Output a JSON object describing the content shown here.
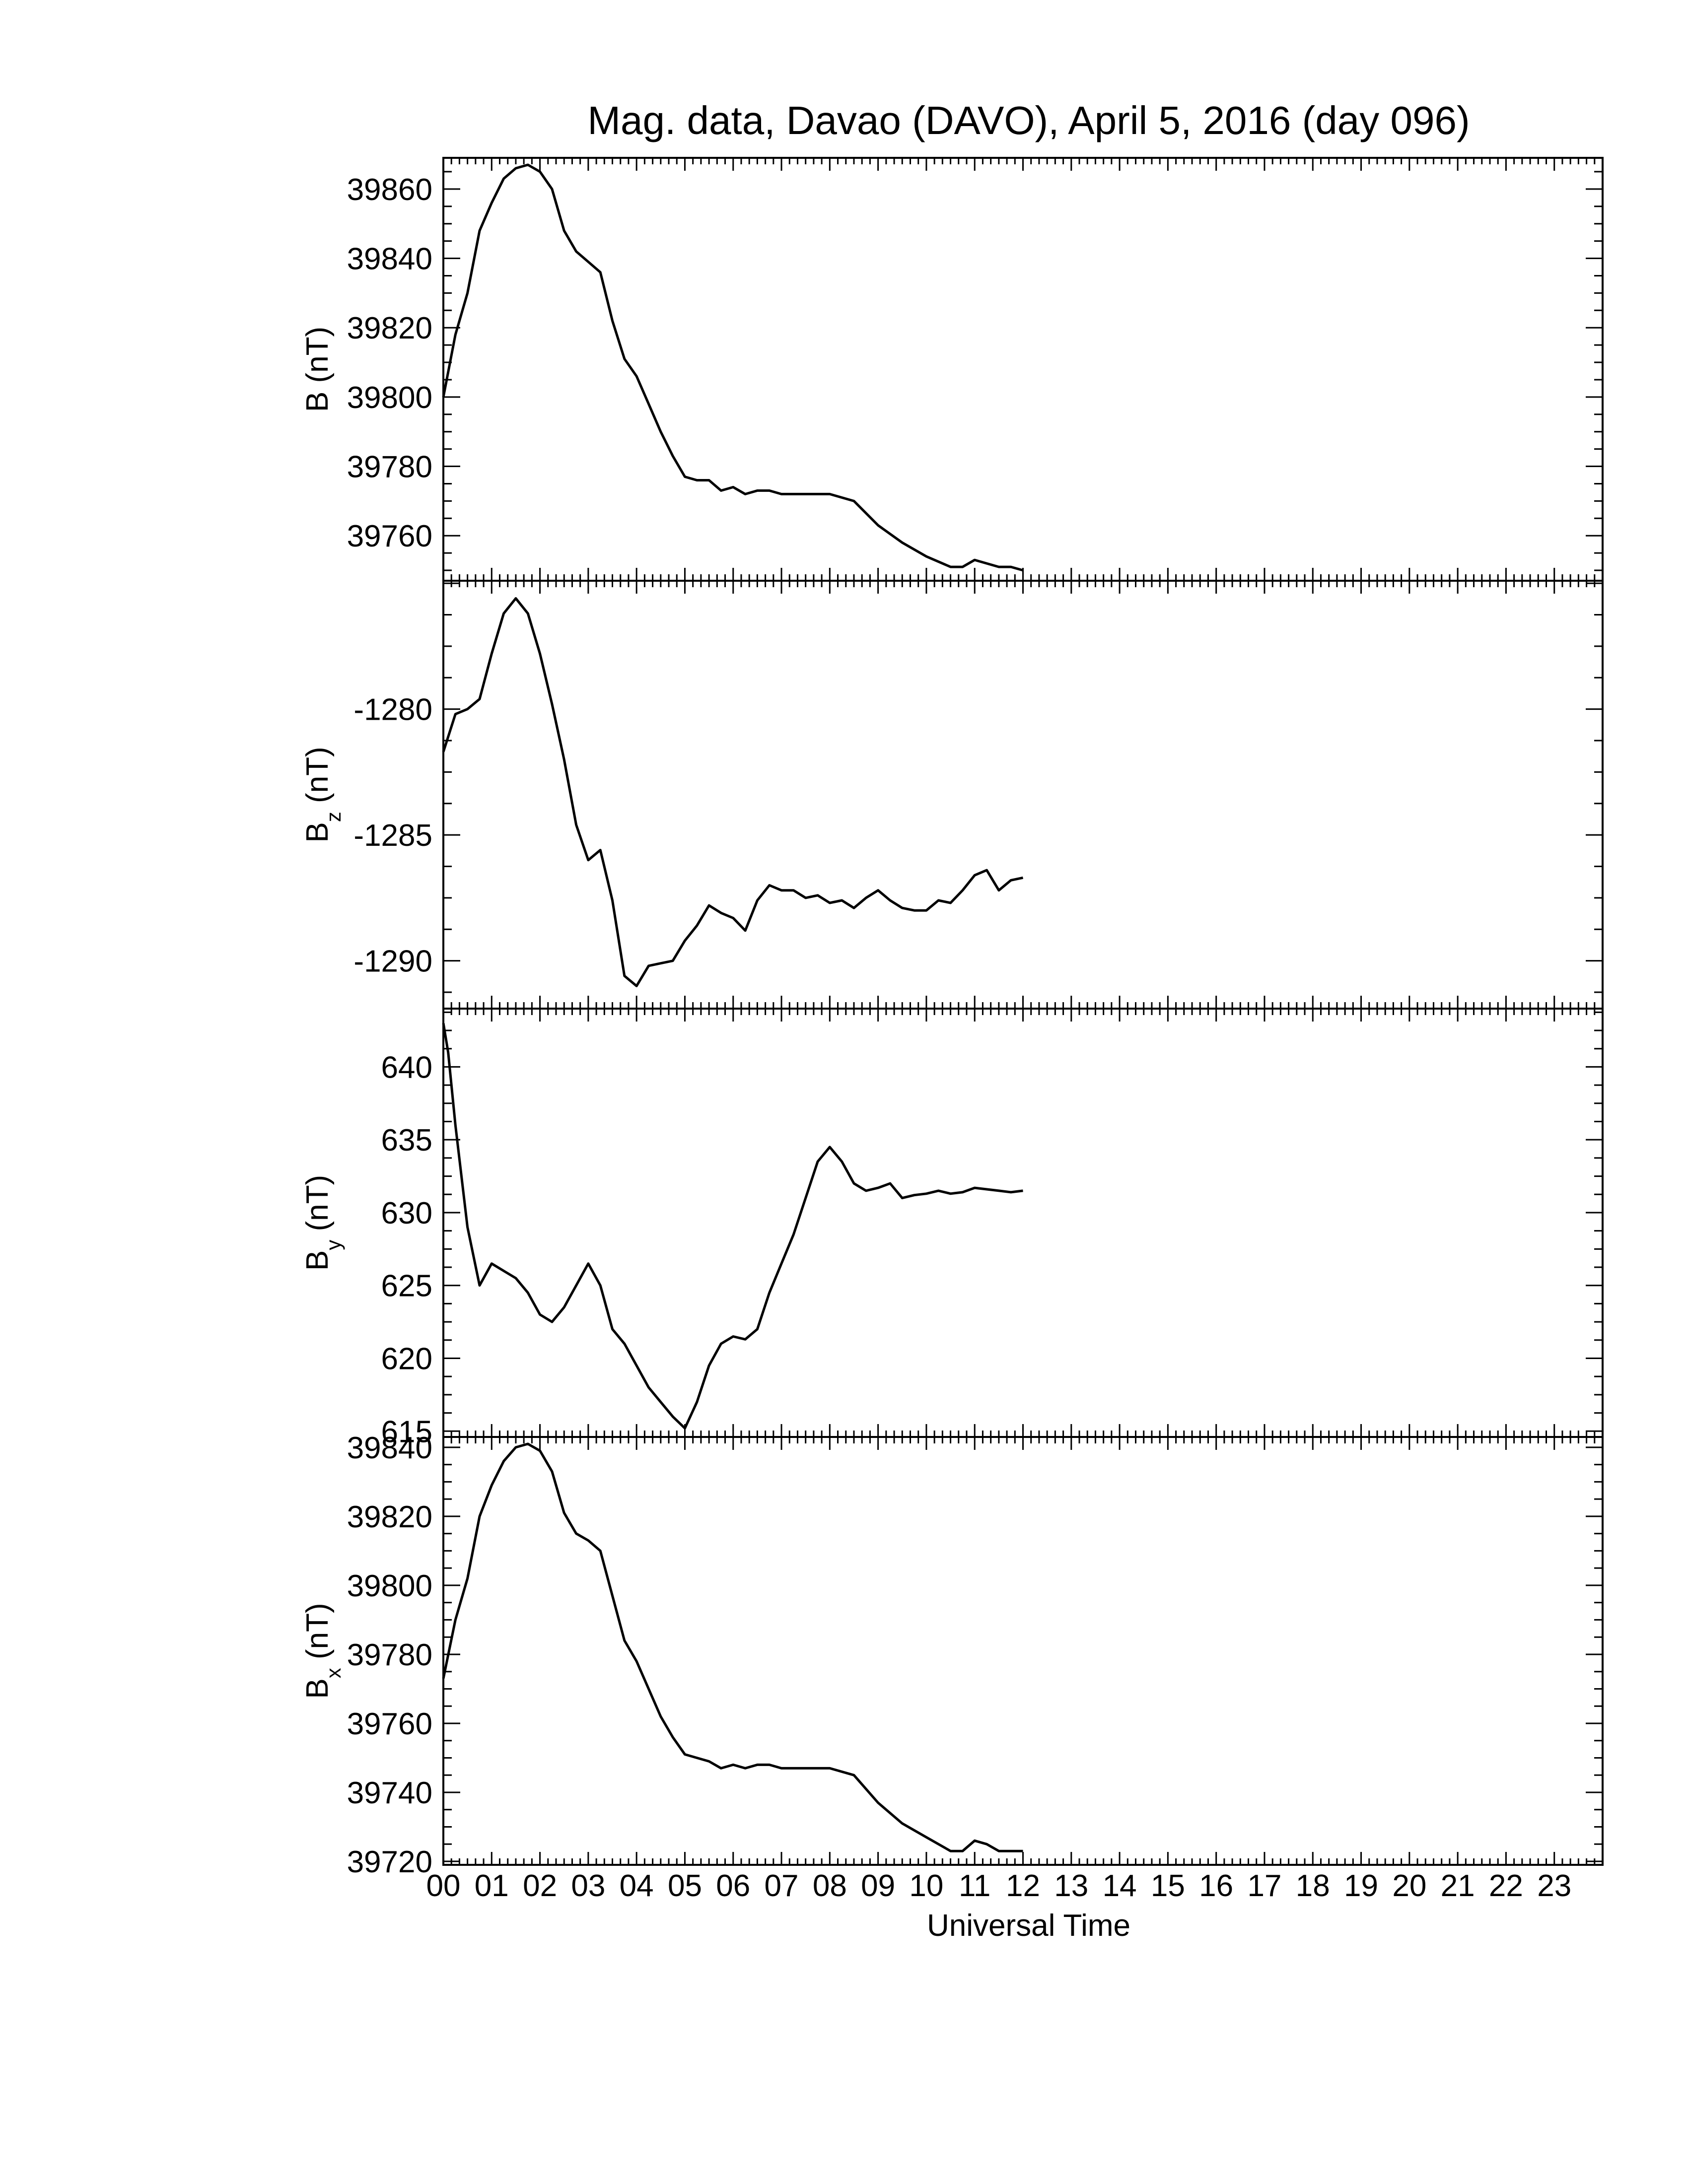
{
  "chart_data": {
    "type": "line",
    "title": "Mag. data, Davao (DAVO), April 5, 2016 (day 096)",
    "xlabel": "Universal Time",
    "x_tick_labels": [
      "00",
      "01",
      "02",
      "03",
      "04",
      "05",
      "06",
      "07",
      "08",
      "09",
      "10",
      "11",
      "12",
      "13",
      "14",
      "15",
      "16",
      "17",
      "18",
      "19",
      "20",
      "21",
      "22",
      "23"
    ],
    "xlim": [
      0,
      24
    ],
    "line_color": "#000000",
    "panels": [
      {
        "ylabel": {
          "main": "B",
          "sub": "",
          "unit": "(nT)"
        },
        "ylim": [
          39747,
          39869
        ],
        "yticks": [
          39760,
          39780,
          39800,
          39820,
          39840,
          39860
        ],
        "x": [
          0,
          0.25,
          0.5,
          0.75,
          1.0,
          1.25,
          1.5,
          1.75,
          2.0,
          2.25,
          2.5,
          2.75,
          3.0,
          3.25,
          3.5,
          3.75,
          4.0,
          4.25,
          4.5,
          4.75,
          5.0,
          5.25,
          5.5,
          5.75,
          6.0,
          6.25,
          6.5,
          6.75,
          7.0,
          7.5,
          8.0,
          8.5,
          9.0,
          9.5,
          10.0,
          10.5,
          10.75,
          11.0,
          11.25,
          11.5,
          11.75,
          12.0
        ],
        "values": [
          39800,
          39818,
          39830,
          39848,
          39856,
          39863,
          39866,
          39867,
          39865,
          39860,
          39848,
          39842,
          39839,
          39836,
          39822,
          39811,
          39806,
          39798,
          39790,
          39783,
          39777,
          39776,
          39776,
          39773,
          39774,
          39772,
          39773,
          39773,
          39772,
          39772,
          39772,
          39770,
          39763,
          39758,
          39754,
          39751,
          39751,
          39753,
          39752,
          39751,
          39751,
          39750
        ]
      },
      {
        "ylabel": {
          "main": "B",
          "sub": "z",
          "unit": "(nT)"
        },
        "ylim": [
          -1291.9,
          -1274.9
        ],
        "yticks": [
          -1280,
          -1285,
          -1290
        ],
        "x": [
          0,
          0.25,
          0.5,
          0.75,
          1.0,
          1.25,
          1.5,
          1.75,
          2.0,
          2.25,
          2.5,
          2.75,
          3.0,
          3.25,
          3.5,
          3.75,
          4.0,
          4.25,
          4.5,
          4.75,
          5.0,
          5.25,
          5.5,
          5.75,
          6.0,
          6.25,
          6.5,
          6.75,
          7.0,
          7.25,
          7.5,
          7.75,
          8.0,
          8.25,
          8.5,
          8.75,
          9.0,
          9.25,
          9.5,
          9.75,
          10.0,
          10.25,
          10.5,
          10.75,
          11.0,
          11.25,
          11.5,
          11.75,
          12.0
        ],
        "values": [
          -1281.7,
          -1280.2,
          -1280.0,
          -1279.6,
          -1277.8,
          -1276.2,
          -1275.6,
          -1276.2,
          -1277.8,
          -1279.8,
          -1282.0,
          -1284.6,
          -1286.0,
          -1285.6,
          -1287.6,
          -1290.6,
          -1291.0,
          -1290.2,
          -1290.1,
          -1290.0,
          -1289.2,
          -1288.6,
          -1287.8,
          -1288.1,
          -1288.3,
          -1288.8,
          -1287.6,
          -1287.0,
          -1287.2,
          -1287.2,
          -1287.5,
          -1287.4,
          -1287.7,
          -1287.6,
          -1287.9,
          -1287.5,
          -1287.2,
          -1287.6,
          -1287.9,
          -1288.0,
          -1288.0,
          -1287.6,
          -1287.7,
          -1287.2,
          -1286.6,
          -1286.4,
          -1287.2,
          -1286.8,
          -1286.7
        ]
      },
      {
        "ylabel": {
          "main": "B",
          "sub": "y",
          "unit": "(nT)"
        },
        "ylim": [
          614.6,
          644.0
        ],
        "yticks": [
          615,
          620,
          625,
          630,
          635,
          640
        ],
        "x": [
          0,
          0.1,
          0.25,
          0.5,
          0.75,
          1.0,
          1.25,
          1.5,
          1.75,
          2.0,
          2.25,
          2.5,
          2.75,
          3.0,
          3.25,
          3.5,
          3.75,
          4.0,
          4.25,
          4.5,
          4.75,
          5.0,
          5.25,
          5.5,
          5.75,
          6.0,
          6.25,
          6.5,
          6.75,
          7.0,
          7.25,
          7.5,
          7.75,
          8.0,
          8.25,
          8.5,
          8.75,
          9.0,
          9.25,
          9.5,
          9.75,
          10.0,
          10.25,
          10.5,
          10.75,
          11.0,
          11.25,
          11.5,
          11.75,
          12.0
        ],
        "values": [
          643.0,
          641.0,
          636.0,
          629.0,
          625.0,
          626.5,
          626.0,
          625.5,
          624.5,
          623.0,
          622.5,
          623.5,
          625.0,
          626.5,
          625.0,
          622.0,
          621.0,
          619.5,
          618.0,
          617.0,
          616.0,
          615.2,
          617.0,
          619.5,
          621.0,
          621.5,
          621.3,
          622.0,
          624.5,
          626.5,
          628.5,
          631.0,
          633.5,
          634.5,
          633.5,
          632.0,
          631.5,
          631.7,
          632.0,
          631.0,
          631.2,
          631.3,
          631.5,
          631.3,
          631.4,
          631.7,
          631.6,
          631.5,
          631.4,
          631.5
        ]
      },
      {
        "ylabel": {
          "main": "B",
          "sub": "x",
          "unit": "(nT)"
        },
        "ylim": [
          39719,
          39843
        ],
        "yticks": [
          39720,
          39740,
          39760,
          39780,
          39800,
          39820,
          39840
        ],
        "x": [
          0,
          0.25,
          0.5,
          0.75,
          1.0,
          1.25,
          1.5,
          1.75,
          2.0,
          2.25,
          2.5,
          2.75,
          3.0,
          3.25,
          3.5,
          3.75,
          4.0,
          4.25,
          4.5,
          4.75,
          5.0,
          5.25,
          5.5,
          5.75,
          6.0,
          6.25,
          6.5,
          6.75,
          7.0,
          7.5,
          8.0,
          8.5,
          9.0,
          9.5,
          10.0,
          10.5,
          10.75,
          11.0,
          11.25,
          11.5,
          11.75,
          12.0
        ],
        "values": [
          39773,
          39790,
          39802,
          39820,
          39829,
          39836,
          39840,
          39841,
          39839,
          39833,
          39821,
          39815,
          39813,
          39810,
          39797,
          39784,
          39778,
          39770,
          39762,
          39756,
          39751,
          39750,
          39749,
          39747,
          39748,
          39747,
          39748,
          39748,
          39747,
          39747,
          39747,
          39745,
          39737,
          39731,
          39727,
          39723,
          39723,
          39726,
          39725,
          39723,
          39723,
          39723
        ]
      }
    ]
  }
}
